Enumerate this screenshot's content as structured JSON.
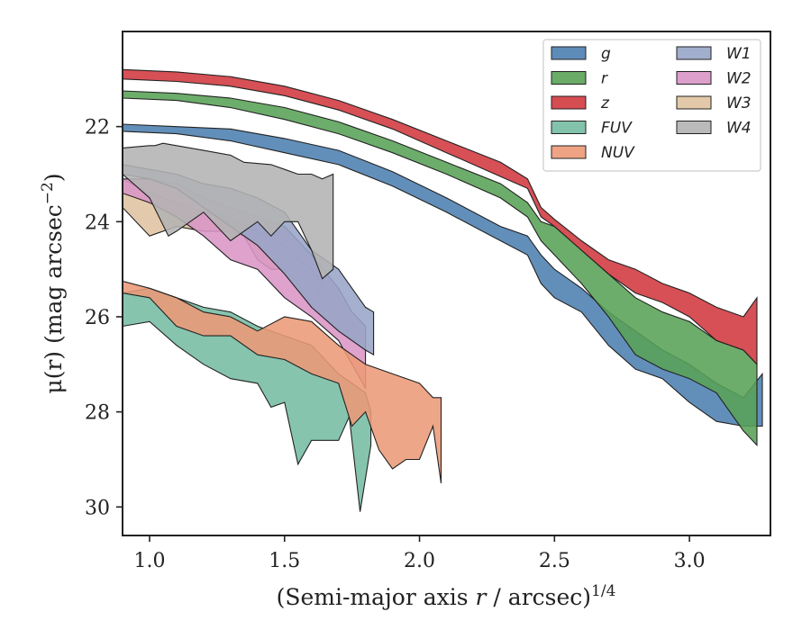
{
  "chart_data": {
    "type": "area",
    "xlabel_prefix": "(Semi-major axis ",
    "xlabel_var": "r",
    "xlabel_mid": " / arcsec)",
    "xlabel_exp": "1/4",
    "ylabel_main": "μ(r) (mag arcsec",
    "ylabel_exp": "−2",
    "ylabel_close": ")",
    "xlim": [
      0.9,
      3.3
    ],
    "ylim": [
      30.6,
      20.0
    ],
    "y_inverted": true,
    "xticks": [
      1.0,
      1.5,
      2.0,
      2.5,
      3.0
    ],
    "xtick_labels": [
      "1.0",
      "1.5",
      "2.0",
      "2.5",
      "3.0"
    ],
    "yticks": [
      22,
      24,
      26,
      28,
      30
    ],
    "ytick_labels": [
      "22",
      "24",
      "26",
      "28",
      "30"
    ],
    "legend_placement": "top-right",
    "legend_columns": 2,
    "series": [
      {
        "name": "g",
        "color": "#4c7fb0",
        "upper": [
          [
            0.9,
            21.95
          ],
          [
            1.1,
            22.0
          ],
          [
            1.3,
            22.05
          ],
          [
            1.5,
            22.25
          ],
          [
            1.7,
            22.5
          ],
          [
            1.9,
            22.95
          ],
          [
            2.1,
            23.5
          ],
          [
            2.3,
            24.1
          ],
          [
            2.4,
            24.3
          ],
          [
            2.45,
            24.7
          ],
          [
            2.5,
            25.0
          ],
          [
            2.6,
            25.4
          ],
          [
            2.7,
            25.9
          ],
          [
            2.8,
            26.3
          ],
          [
            2.9,
            26.7
          ],
          [
            3.0,
            27.0
          ],
          [
            3.1,
            27.4
          ],
          [
            3.2,
            27.7
          ],
          [
            3.27,
            27.2
          ]
        ],
        "lower": [
          [
            3.27,
            28.3
          ],
          [
            3.2,
            28.3
          ],
          [
            3.1,
            28.2
          ],
          [
            3.0,
            27.8
          ],
          [
            2.9,
            27.3
          ],
          [
            2.8,
            27.1
          ],
          [
            2.7,
            26.6
          ],
          [
            2.6,
            25.9
          ],
          [
            2.5,
            25.6
          ],
          [
            2.45,
            25.3
          ],
          [
            2.4,
            24.7
          ],
          [
            2.3,
            24.4
          ],
          [
            2.1,
            23.8
          ],
          [
            1.9,
            23.25
          ],
          [
            1.7,
            22.8
          ],
          [
            1.5,
            22.55
          ],
          [
            1.3,
            22.3
          ],
          [
            1.1,
            22.15
          ],
          [
            0.9,
            22.1
          ]
        ]
      },
      {
        "name": "r",
        "color": "#59a257",
        "upper": [
          [
            0.9,
            21.25
          ],
          [
            1.1,
            21.3
          ],
          [
            1.3,
            21.4
          ],
          [
            1.5,
            21.6
          ],
          [
            1.7,
            21.9
          ],
          [
            1.9,
            22.3
          ],
          [
            2.1,
            22.75
          ],
          [
            2.3,
            23.2
          ],
          [
            2.4,
            23.6
          ],
          [
            2.45,
            24.0
          ],
          [
            2.5,
            24.1
          ],
          [
            2.6,
            24.6
          ],
          [
            2.7,
            25.1
          ],
          [
            2.8,
            25.6
          ],
          [
            2.9,
            25.9
          ],
          [
            3.0,
            26.1
          ],
          [
            3.1,
            26.5
          ],
          [
            3.2,
            26.7
          ],
          [
            3.25,
            27.0
          ]
        ],
        "lower": [
          [
            3.25,
            28.7
          ],
          [
            3.2,
            28.4
          ],
          [
            3.1,
            27.6
          ],
          [
            3.0,
            27.3
          ],
          [
            2.9,
            27.1
          ],
          [
            2.8,
            26.8
          ],
          [
            2.7,
            26.0
          ],
          [
            2.6,
            25.3
          ],
          [
            2.5,
            24.7
          ],
          [
            2.45,
            24.4
          ],
          [
            2.4,
            23.9
          ],
          [
            2.3,
            23.5
          ],
          [
            2.1,
            23.0
          ],
          [
            1.9,
            22.55
          ],
          [
            1.7,
            22.15
          ],
          [
            1.5,
            21.85
          ],
          [
            1.3,
            21.6
          ],
          [
            1.1,
            21.45
          ],
          [
            0.9,
            21.4
          ]
        ]
      },
      {
        "name": "z",
        "color": "#d0383e",
        "upper": [
          [
            0.9,
            20.8
          ],
          [
            1.1,
            20.85
          ],
          [
            1.3,
            20.95
          ],
          [
            1.5,
            21.15
          ],
          [
            1.7,
            21.45
          ],
          [
            1.9,
            21.85
          ],
          [
            2.1,
            22.3
          ],
          [
            2.3,
            22.75
          ],
          [
            2.4,
            23.1
          ],
          [
            2.45,
            23.7
          ],
          [
            2.5,
            23.95
          ],
          [
            2.6,
            24.4
          ],
          [
            2.7,
            24.8
          ],
          [
            2.8,
            25.0
          ],
          [
            2.9,
            25.3
          ],
          [
            3.0,
            25.5
          ],
          [
            3.1,
            25.8
          ],
          [
            3.2,
            26.0
          ],
          [
            3.25,
            25.6
          ]
        ],
        "lower": [
          [
            3.25,
            27.0
          ],
          [
            3.2,
            26.7
          ],
          [
            3.1,
            26.5
          ],
          [
            3.0,
            26.0
          ],
          [
            2.9,
            25.7
          ],
          [
            2.8,
            25.5
          ],
          [
            2.7,
            25.1
          ],
          [
            2.6,
            24.6
          ],
          [
            2.5,
            24.1
          ],
          [
            2.45,
            23.9
          ],
          [
            2.4,
            23.3
          ],
          [
            2.3,
            23.05
          ],
          [
            2.1,
            22.55
          ],
          [
            1.9,
            22.05
          ],
          [
            1.7,
            21.65
          ],
          [
            1.5,
            21.35
          ],
          [
            1.3,
            21.15
          ],
          [
            1.1,
            21.05
          ],
          [
            0.9,
            21.0
          ]
        ]
      },
      {
        "name": "W3",
        "color": "#dfc3a0",
        "upper": [
          [
            0.9,
            23.1
          ],
          [
            1.0,
            23.4
          ],
          [
            1.1,
            23.6
          ],
          [
            1.2,
            23.8
          ],
          [
            1.3,
            23.9
          ],
          [
            1.4,
            24.2
          ],
          [
            1.5,
            24.5
          ],
          [
            1.55,
            24.8
          ],
          [
            1.6,
            25.0
          ],
          [
            1.64,
            25.3
          ]
        ],
        "lower": [
          [
            1.64,
            25.3
          ],
          [
            1.6,
            25.8
          ],
          [
            1.55,
            25.3
          ],
          [
            1.5,
            25.0
          ],
          [
            1.45,
            25.0
          ],
          [
            1.4,
            24.8
          ],
          [
            1.35,
            24.3
          ],
          [
            1.3,
            24.2
          ],
          [
            1.2,
            24.2
          ],
          [
            1.1,
            24.1
          ],
          [
            1.0,
            24.3
          ],
          [
            0.9,
            23.7
          ]
        ]
      },
      {
        "name": "W2",
        "color": "#d995c6",
        "upper": [
          [
            0.9,
            23.1
          ],
          [
            1.0,
            23.1
          ],
          [
            1.1,
            23.2
          ],
          [
            1.2,
            23.5
          ],
          [
            1.3,
            23.7
          ],
          [
            1.4,
            23.9
          ],
          [
            1.5,
            24.1
          ],
          [
            1.6,
            24.7
          ],
          [
            1.7,
            25.4
          ],
          [
            1.75,
            25.9
          ],
          [
            1.8,
            26.2
          ]
        ],
        "lower": [
          [
            1.8,
            27.5
          ],
          [
            1.75,
            27.0
          ],
          [
            1.7,
            26.5
          ],
          [
            1.6,
            26.0
          ],
          [
            1.5,
            25.6
          ],
          [
            1.4,
            25.0
          ],
          [
            1.3,
            24.8
          ],
          [
            1.2,
            24.3
          ],
          [
            1.1,
            23.9
          ],
          [
            1.0,
            23.6
          ],
          [
            0.9,
            23.4
          ]
        ]
      },
      {
        "name": "W1",
        "color": "#97a5c7",
        "upper": [
          [
            0.9,
            22.8
          ],
          [
            1.0,
            22.9
          ],
          [
            1.1,
            23.0
          ],
          [
            1.2,
            23.2
          ],
          [
            1.3,
            23.3
          ],
          [
            1.4,
            23.5
          ],
          [
            1.5,
            23.8
          ],
          [
            1.6,
            24.6
          ],
          [
            1.7,
            25.0
          ],
          [
            1.8,
            25.8
          ],
          [
            1.83,
            25.9
          ]
        ],
        "lower": [
          [
            1.83,
            26.8
          ],
          [
            1.8,
            26.7
          ],
          [
            1.7,
            26.3
          ],
          [
            1.6,
            25.8
          ],
          [
            1.5,
            25.1
          ],
          [
            1.4,
            24.5
          ],
          [
            1.3,
            24.1
          ],
          [
            1.2,
            23.7
          ],
          [
            1.1,
            23.3
          ],
          [
            1.0,
            23.1
          ],
          [
            0.9,
            23.0
          ]
        ]
      },
      {
        "name": "W4",
        "color": "#b3b3b3",
        "upper": [
          [
            0.9,
            22.45
          ],
          [
            1.0,
            22.4
          ],
          [
            1.02,
            22.4
          ],
          [
            1.05,
            22.35
          ],
          [
            1.1,
            22.4
          ],
          [
            1.2,
            22.5
          ],
          [
            1.3,
            22.6
          ],
          [
            1.35,
            22.75
          ],
          [
            1.45,
            22.8
          ],
          [
            1.5,
            22.9
          ],
          [
            1.55,
            23.0
          ],
          [
            1.6,
            23.0
          ],
          [
            1.64,
            23.1
          ],
          [
            1.68,
            23.0
          ]
        ],
        "lower": [
          [
            1.68,
            25.0
          ],
          [
            1.64,
            25.2
          ],
          [
            1.6,
            24.6
          ],
          [
            1.55,
            24.0
          ],
          [
            1.5,
            24.0
          ],
          [
            1.45,
            24.3
          ],
          [
            1.4,
            24.0
          ],
          [
            1.35,
            24.2
          ],
          [
            1.3,
            24.4
          ],
          [
            1.2,
            23.8
          ],
          [
            1.1,
            24.2
          ],
          [
            1.07,
            24.3
          ],
          [
            1.0,
            23.5
          ],
          [
            0.9,
            23.0
          ]
        ]
      },
      {
        "name": "FUV",
        "color": "#75bca3",
        "upper": [
          [
            0.9,
            25.5
          ],
          [
            1.0,
            25.4
          ],
          [
            1.1,
            25.6
          ],
          [
            1.2,
            25.8
          ],
          [
            1.3,
            25.9
          ],
          [
            1.4,
            26.2
          ],
          [
            1.5,
            26.4
          ],
          [
            1.6,
            26.6
          ],
          [
            1.7,
            27.2
          ],
          [
            1.8,
            27.6
          ],
          [
            1.82,
            28.0
          ]
        ],
        "lower": [
          [
            1.82,
            28.7
          ],
          [
            1.78,
            30.1
          ],
          [
            1.74,
            28.1
          ],
          [
            1.7,
            28.6
          ],
          [
            1.6,
            28.6
          ],
          [
            1.55,
            29.1
          ],
          [
            1.5,
            27.8
          ],
          [
            1.45,
            27.9
          ],
          [
            1.4,
            27.4
          ],
          [
            1.3,
            27.3
          ],
          [
            1.2,
            27.0
          ],
          [
            1.1,
            26.6
          ],
          [
            1.0,
            26.1
          ],
          [
            0.9,
            26.2
          ]
        ]
      },
      {
        "name": "NUV",
        "color": "#ec9a77",
        "upper": [
          [
            0.9,
            25.25
          ],
          [
            1.0,
            25.4
          ],
          [
            1.1,
            25.6
          ],
          [
            1.2,
            25.9
          ],
          [
            1.3,
            26.0
          ],
          [
            1.4,
            26.3
          ],
          [
            1.5,
            26.0
          ],
          [
            1.6,
            26.1
          ],
          [
            1.7,
            26.6
          ],
          [
            1.8,
            27.0
          ],
          [
            1.9,
            27.2
          ],
          [
            2.0,
            27.4
          ],
          [
            2.05,
            27.7
          ],
          [
            2.08,
            27.7
          ]
        ],
        "lower": [
          [
            2.08,
            29.5
          ],
          [
            2.05,
            28.3
          ],
          [
            2.0,
            29.0
          ],
          [
            1.95,
            29.0
          ],
          [
            1.9,
            29.2
          ],
          [
            1.85,
            28.8
          ],
          [
            1.8,
            28.0
          ],
          [
            1.75,
            28.3
          ],
          [
            1.7,
            27.4
          ],
          [
            1.6,
            27.2
          ],
          [
            1.5,
            26.9
          ],
          [
            1.4,
            26.8
          ],
          [
            1.3,
            26.4
          ],
          [
            1.2,
            26.4
          ],
          [
            1.1,
            26.2
          ],
          [
            1.0,
            25.6
          ],
          [
            0.9,
            25.5
          ]
        ]
      }
    ],
    "legend_left_column": [
      "g",
      "r",
      "z",
      "FUV",
      "NUV"
    ],
    "legend_right_column": [
      "W1",
      "W2",
      "W3",
      "W4"
    ]
  }
}
